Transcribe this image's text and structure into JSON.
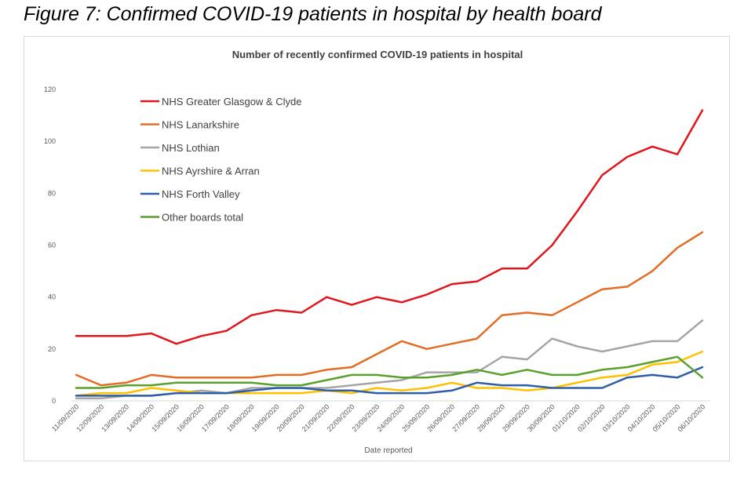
{
  "figure_title": "Figure 7: Confirmed COVID-19 patients in hospital by health board",
  "chart_data": {
    "type": "line",
    "title": "Number of recently confirmed COVID-19 patients in hospital",
    "xlabel": "Date reported",
    "ylabel": "",
    "ylim": [
      0,
      120
    ],
    "yticks": [
      0,
      20,
      40,
      60,
      80,
      100,
      120
    ],
    "grid": false,
    "legend_position": "top-left",
    "categories": [
      "11/09/2020",
      "12/09/2020",
      "13/09/2020",
      "14/09/2020",
      "15/09/2020",
      "16/09/2020",
      "17/09/2020",
      "18/09/2020",
      "19/09/2020",
      "20/09/2020",
      "21/09/2020",
      "22/09/2020",
      "23/09/2020",
      "24/09/2020",
      "25/09/2020",
      "26/09/2020",
      "27/09/2020",
      "28/09/2020",
      "29/09/2020",
      "30/09/2020",
      "01/10/2020",
      "02/10/2020",
      "03/10/2020",
      "04/10/2020",
      "05/10/2020",
      "06/10/2020"
    ],
    "series": [
      {
        "name": "NHS Greater Glasgow & Clyde",
        "color": "#e0161c",
        "values": [
          25,
          25,
          25,
          26,
          22,
          25,
          27,
          33,
          35,
          34,
          40,
          37,
          40,
          38,
          41,
          45,
          46,
          51,
          51,
          60,
          73,
          87,
          94,
          98,
          95,
          112
        ]
      },
      {
        "name": "NHS Lanarkshire",
        "color": "#e46c24",
        "values": [
          10,
          6,
          7,
          10,
          9,
          9,
          9,
          9,
          10,
          10,
          12,
          13,
          18,
          23,
          20,
          22,
          24,
          33,
          34,
          33,
          38,
          43,
          44,
          50,
          59,
          65
        ]
      },
      {
        "name": "NHS Lothian",
        "color": "#a5a5a5",
        "values": [
          1,
          1,
          2,
          2,
          3,
          4,
          3,
          5,
          5,
          5,
          5,
          6,
          7,
          8,
          11,
          11,
          11,
          17,
          16,
          24,
          21,
          19,
          21,
          23,
          23,
          31
        ]
      },
      {
        "name": "NHS Ayrshire & Arran",
        "color": "#ffc000",
        "values": [
          2,
          3,
          3,
          5,
          4,
          3,
          3,
          3,
          3,
          3,
          4,
          3,
          5,
          4,
          5,
          7,
          5,
          5,
          4,
          5,
          7,
          9,
          10,
          14,
          15,
          19
        ]
      },
      {
        "name": "NHS Forth Valley",
        "color": "#2e5ea8",
        "values": [
          2,
          2,
          2,
          2,
          3,
          3,
          3,
          4,
          5,
          5,
          4,
          4,
          3,
          3,
          3,
          4,
          7,
          6,
          6,
          5,
          5,
          5,
          9,
          10,
          9,
          13
        ]
      },
      {
        "name": "Other boards total",
        "color": "#5aa02c",
        "values": [
          5,
          5,
          6,
          6,
          7,
          7,
          7,
          7,
          6,
          6,
          8,
          10,
          10,
          9,
          9,
          10,
          12,
          10,
          12,
          10,
          10,
          12,
          13,
          15,
          17,
          9
        ]
      }
    ]
  }
}
